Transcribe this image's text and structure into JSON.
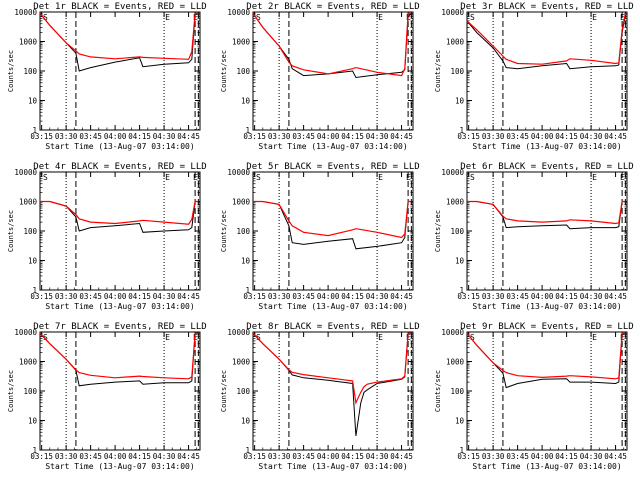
{
  "colors": {
    "events": "#000000",
    "lld": "#ff0000",
    "axis": "#000000",
    "background": "#ffffff"
  },
  "shared": {
    "xlabel": "Start Time (13-Aug-07 03:14:00)",
    "ylabel": "Counts/sec",
    "x_ticks": [
      "03:15",
      "03:30",
      "03:45",
      "04:00",
      "04:15",
      "04:30",
      "04:45"
    ],
    "y_ticks": [
      "1",
      "10",
      "100",
      "1000",
      "10000"
    ],
    "xlim": [
      "03:14",
      "04:52"
    ],
    "ylim": [
      1,
      10000
    ],
    "y_scale": "log",
    "markers": [
      "S",
      "E",
      "S",
      "E"
    ]
  },
  "chart_data": [
    {
      "type": "line",
      "title": "Det 1r BLACK = Events, RED = LLD",
      "x": [
        "03:14",
        "03:20",
        "03:30",
        "03:36",
        "03:38",
        "03:45",
        "04:00",
        "04:15",
        "04:17",
        "04:30",
        "04:45",
        "04:47",
        "04:49",
        "04:51"
      ],
      "series": [
        {
          "values": [
            9000,
            3500,
            900,
            400,
            100,
            130,
            200,
            280,
            140,
            170,
            190,
            250,
            8000,
            9000
          ]
        },
        {
          "values": [
            9000,
            3500,
            900,
            480,
            380,
            300,
            260,
            300,
            290,
            270,
            250,
            450,
            9000,
            9000
          ]
        }
      ]
    },
    {
      "type": "line",
      "title": "Det 2r BLACK = Events, RED = LLD",
      "x": [
        "03:14",
        "03:20",
        "03:30",
        "03:36",
        "03:38",
        "03:45",
        "04:00",
        "04:15",
        "04:17",
        "04:30",
        "04:45",
        "04:47",
        "04:49",
        "04:51"
      ],
      "series": [
        {
          "values": [
            9000,
            3000,
            700,
            250,
            120,
            70,
            80,
            100,
            60,
            75,
            90,
            110,
            7000,
            9000
          ]
        },
        {
          "values": [
            9000,
            3000,
            700,
            200,
            150,
            110,
            80,
            120,
            130,
            90,
            70,
            120,
            9000,
            9000
          ]
        }
      ]
    },
    {
      "type": "line",
      "title": "Det 3r BLACK = Events, RED = LLD",
      "x": [
        "03:14",
        "03:20",
        "03:30",
        "03:36",
        "03:38",
        "03:45",
        "04:00",
        "04:15",
        "04:17",
        "04:30",
        "04:45",
        "04:47",
        "04:49",
        "04:51"
      ],
      "series": [
        {
          "values": [
            5000,
            2000,
            600,
            220,
            130,
            120,
            150,
            180,
            120,
            140,
            150,
            160,
            2000,
            8000
          ]
        },
        {
          "values": [
            5000,
            2500,
            700,
            320,
            250,
            180,
            170,
            220,
            260,
            230,
            180,
            190,
            2500,
            9000
          ]
        }
      ]
    },
    {
      "type": "line",
      "title": "Det 4r BLACK = Events, RED = LLD",
      "x": [
        "03:14",
        "03:20",
        "03:30",
        "03:36",
        "03:38",
        "03:45",
        "04:00",
        "04:15",
        "04:17",
        "04:30",
        "04:45",
        "04:47",
        "04:49",
        "04:51"
      ],
      "series": [
        {
          "values": [
            1000,
            1000,
            700,
            300,
            100,
            130,
            150,
            180,
            90,
            100,
            110,
            130,
            1000,
            1000
          ]
        },
        {
          "values": [
            1000,
            1000,
            700,
            360,
            260,
            200,
            180,
            220,
            230,
            200,
            170,
            250,
            1000,
            1000
          ]
        }
      ]
    },
    {
      "type": "line",
      "title": "Det 5r BLACK = Events, RED = LLD",
      "x": [
        "03:14",
        "03:20",
        "03:30",
        "03:36",
        "03:38",
        "03:45",
        "04:00",
        "04:15",
        "04:17",
        "04:30",
        "04:45",
        "04:47",
        "04:49",
        "04:51"
      ],
      "series": [
        {
          "values": [
            1000,
            1000,
            800,
            150,
            40,
            35,
            45,
            55,
            25,
            30,
            40,
            60,
            1000,
            1000
          ]
        },
        {
          "values": [
            1000,
            1000,
            800,
            220,
            150,
            90,
            70,
            110,
            120,
            90,
            60,
            80,
            1000,
            1000
          ]
        }
      ]
    },
    {
      "type": "line",
      "title": "Det 6r BLACK = Events, RED = LLD",
      "x": [
        "03:14",
        "03:20",
        "03:30",
        "03:36",
        "03:38",
        "03:45",
        "04:00",
        "04:15",
        "04:17",
        "04:30",
        "04:45",
        "04:47",
        "04:49",
        "04:51"
      ],
      "series": [
        {
          "values": [
            1000,
            1000,
            800,
            300,
            130,
            140,
            150,
            160,
            120,
            130,
            130,
            140,
            1000,
            1000
          ]
        },
        {
          "values": [
            1000,
            1000,
            800,
            320,
            260,
            220,
            200,
            220,
            240,
            220,
            180,
            190,
            1000,
            1000
          ]
        }
      ]
    },
    {
      "type": "line",
      "title": "Det 7r BLACK = Events, RED = LLD",
      "x": [
        "03:14",
        "03:20",
        "03:30",
        "03:36",
        "03:38",
        "03:45",
        "04:00",
        "04:15",
        "04:17",
        "04:30",
        "04:45",
        "04:47",
        "04:49",
        "04:51"
      ],
      "series": [
        {
          "values": [
            9000,
            4000,
            1200,
            500,
            150,
            170,
            200,
            220,
            170,
            190,
            190,
            220,
            9000,
            9000
          ]
        },
        {
          "values": [
            9000,
            4000,
            1200,
            520,
            420,
            340,
            280,
            320,
            310,
            280,
            260,
            300,
            9000,
            9000
          ]
        }
      ]
    },
    {
      "type": "line",
      "title": "Det 8r BLACK = Events, RED = LLD",
      "x": [
        "03:14",
        "03:20",
        "03:30",
        "03:36",
        "03:38",
        "03:45",
        "04:00",
        "04:15",
        "04:17",
        "04:20",
        "04:22",
        "04:24",
        "04:30",
        "04:45",
        "04:47",
        "04:49",
        "04:51"
      ],
      "series": [
        {
          "values": [
            9000,
            4000,
            1200,
            500,
            350,
            280,
            230,
            180,
            3,
            40,
            90,
            110,
            180,
            250,
            300,
            9000,
            9000
          ]
        },
        {
          "values": [
            9000,
            4000,
            1200,
            520,
            430,
            360,
            280,
            220,
            40,
            90,
            140,
            170,
            200,
            260,
            320,
            9000,
            9000
          ]
        }
      ]
    },
    {
      "type": "line",
      "title": "Det 9r BLACK = Events, RED = LLD",
      "x": [
        "03:14",
        "03:20",
        "03:30",
        "03:36",
        "03:38",
        "03:45",
        "04:00",
        "04:15",
        "04:17",
        "04:30",
        "04:45",
        "04:47",
        "04:49",
        "04:51"
      ],
      "series": [
        {
          "values": [
            9000,
            3500,
            900,
            400,
            130,
            180,
            250,
            260,
            200,
            200,
            180,
            200,
            8000,
            9000
          ]
        },
        {
          "values": [
            9000,
            3500,
            900,
            500,
            420,
            330,
            290,
            320,
            330,
            300,
            260,
            280,
            9000,
            9000
          ]
        }
      ]
    }
  ]
}
